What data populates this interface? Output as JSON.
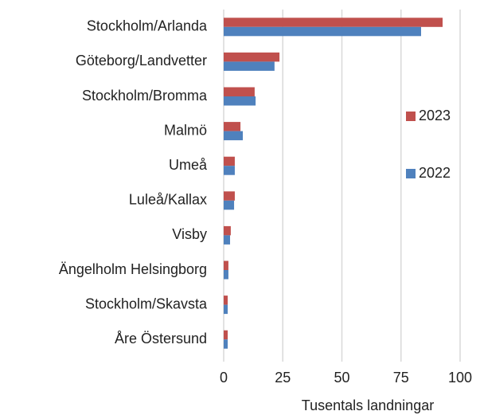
{
  "chart_data": {
    "type": "hbar",
    "categories": [
      "Stockholm/Arlanda",
      "Göteborg/Landvetter",
      "Stockholm/Bromma",
      "Malmö",
      "Umeå",
      "Luleå/Kallax",
      "Visby",
      "Ängelholm Helsingborg",
      "Stockholm/Skavsta",
      "Åre Östersund"
    ],
    "series": [
      {
        "name": "2023",
        "color": "#c0504d",
        "values": [
          92.6,
          23.6,
          13.1,
          7.1,
          4.7,
          4.7,
          3.0,
          2.0,
          1.7,
          1.7
        ]
      },
      {
        "name": "2022",
        "color": "#4f81bd",
        "values": [
          83.5,
          21.5,
          13.5,
          8.1,
          4.7,
          4.4,
          2.7,
          2.0,
          1.7,
          1.7
        ]
      }
    ],
    "xlim": [
      0,
      100
    ],
    "xticks": [
      0,
      25,
      50,
      75,
      100
    ],
    "xlabel": "Tusentals landningar",
    "grid": true,
    "legend": "right"
  }
}
